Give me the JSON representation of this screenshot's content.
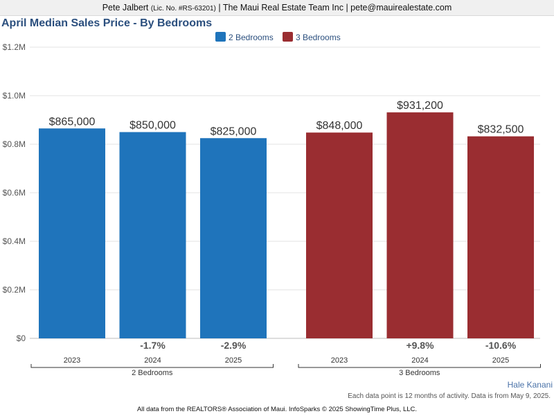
{
  "header": {
    "agent_name": "Pete Jalbert",
    "license": "(Lic. No. #RS-63201)",
    "company_contact": "| The Maui Real Estate Team Inc | pete@mauirealestate.com"
  },
  "chart_data": {
    "type": "bar",
    "title": "April Median Sales Price - By Bedrooms",
    "xlabel": "",
    "ylabel": "",
    "ylim": [
      0,
      1200000
    ],
    "y_ticks": [
      "$0",
      "$0.2M",
      "$0.4M",
      "$0.6M",
      "$0.8M",
      "$1.0M",
      "$1.2M"
    ],
    "grid": true,
    "legend_position": "top-center",
    "categories": [
      "2023",
      "2024",
      "2025"
    ],
    "series": [
      {
        "name": "2 Bedrooms",
        "color": "#1f74bb",
        "values": [
          865000,
          850000,
          825000
        ],
        "value_labels": [
          "$865,000",
          "$850,000",
          "$825,000"
        ],
        "changes": [
          "",
          "-1.7%",
          "-2.9%"
        ]
      },
      {
        "name": "3 Bedrooms",
        "color": "#9a2d31",
        "values": [
          848000,
          931200,
          832500
        ],
        "value_labels": [
          "$848,000",
          "$931,200",
          "$832,500"
        ],
        "changes": [
          "",
          "+9.8%",
          "-10.6%"
        ]
      }
    ]
  },
  "brand": "Hale Kanani",
  "note": "Each data point is 12 months of activity. Data is from May 9, 2025.",
  "footer": "All data from the REALTORS® Association of Maui. InfoSparks © 2025 ShowingTime Plus, LLC."
}
